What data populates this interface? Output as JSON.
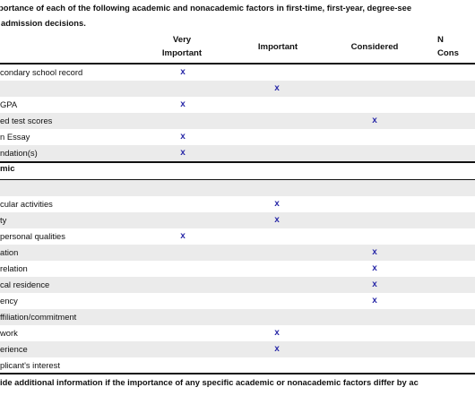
{
  "intro": {
    "line1": "portance of each of the following academic and nonacademic factors in first-time, first-year, degree-see",
    "line2": "admission decisions."
  },
  "columns": {
    "very_important_l1": "Very",
    "very_important_l2": "Important",
    "important": "Important",
    "considered": "Considered",
    "not_considered_l1": "N",
    "not_considered_l2": "Cons"
  },
  "academic_rows": [
    {
      "label": "condary school record",
      "rating": "very_important",
      "mark": "x"
    },
    {
      "label": "",
      "rating": "important",
      "mark": "x"
    },
    {
      "label": "GPA",
      "rating": "very_important",
      "mark": "x"
    },
    {
      "label": "ed test scores",
      "rating": "considered",
      "mark": "x"
    },
    {
      "label": "n Essay",
      "rating": "very_important",
      "mark": "x"
    },
    {
      "label": "ndation(s)",
      "rating": "very_important",
      "mark": "x"
    }
  ],
  "section_label": "mic",
  "nonacademic_rows": [
    {
      "label": "",
      "rating": null,
      "mark": ""
    },
    {
      "label": "cular activities",
      "rating": "important",
      "mark": "x"
    },
    {
      "label": "ty",
      "rating": "important",
      "mark": "x"
    },
    {
      "label": "personal qualities",
      "rating": "very_important",
      "mark": "x"
    },
    {
      "label": "ation",
      "rating": "considered",
      "mark": "x"
    },
    {
      "label": "relation",
      "rating": "considered",
      "mark": "x"
    },
    {
      "label": "cal residence",
      "rating": "considered",
      "mark": "x"
    },
    {
      "label": "ency",
      "rating": "considered",
      "mark": "x"
    },
    {
      "label": "ffiliation/commitment",
      "rating": null,
      "mark": ""
    },
    {
      "label": "work",
      "rating": "important",
      "mark": "x"
    },
    {
      "label": "erience",
      "rating": "important",
      "mark": "x"
    },
    {
      "label": "plicant's interest",
      "rating": null,
      "mark": ""
    }
  ],
  "footer": "ide additional information if the importance of any specific academic or nonacademic factors differ by ac",
  "colors": {
    "mark": "#2a2aa8",
    "shade": "#ebebeb"
  }
}
